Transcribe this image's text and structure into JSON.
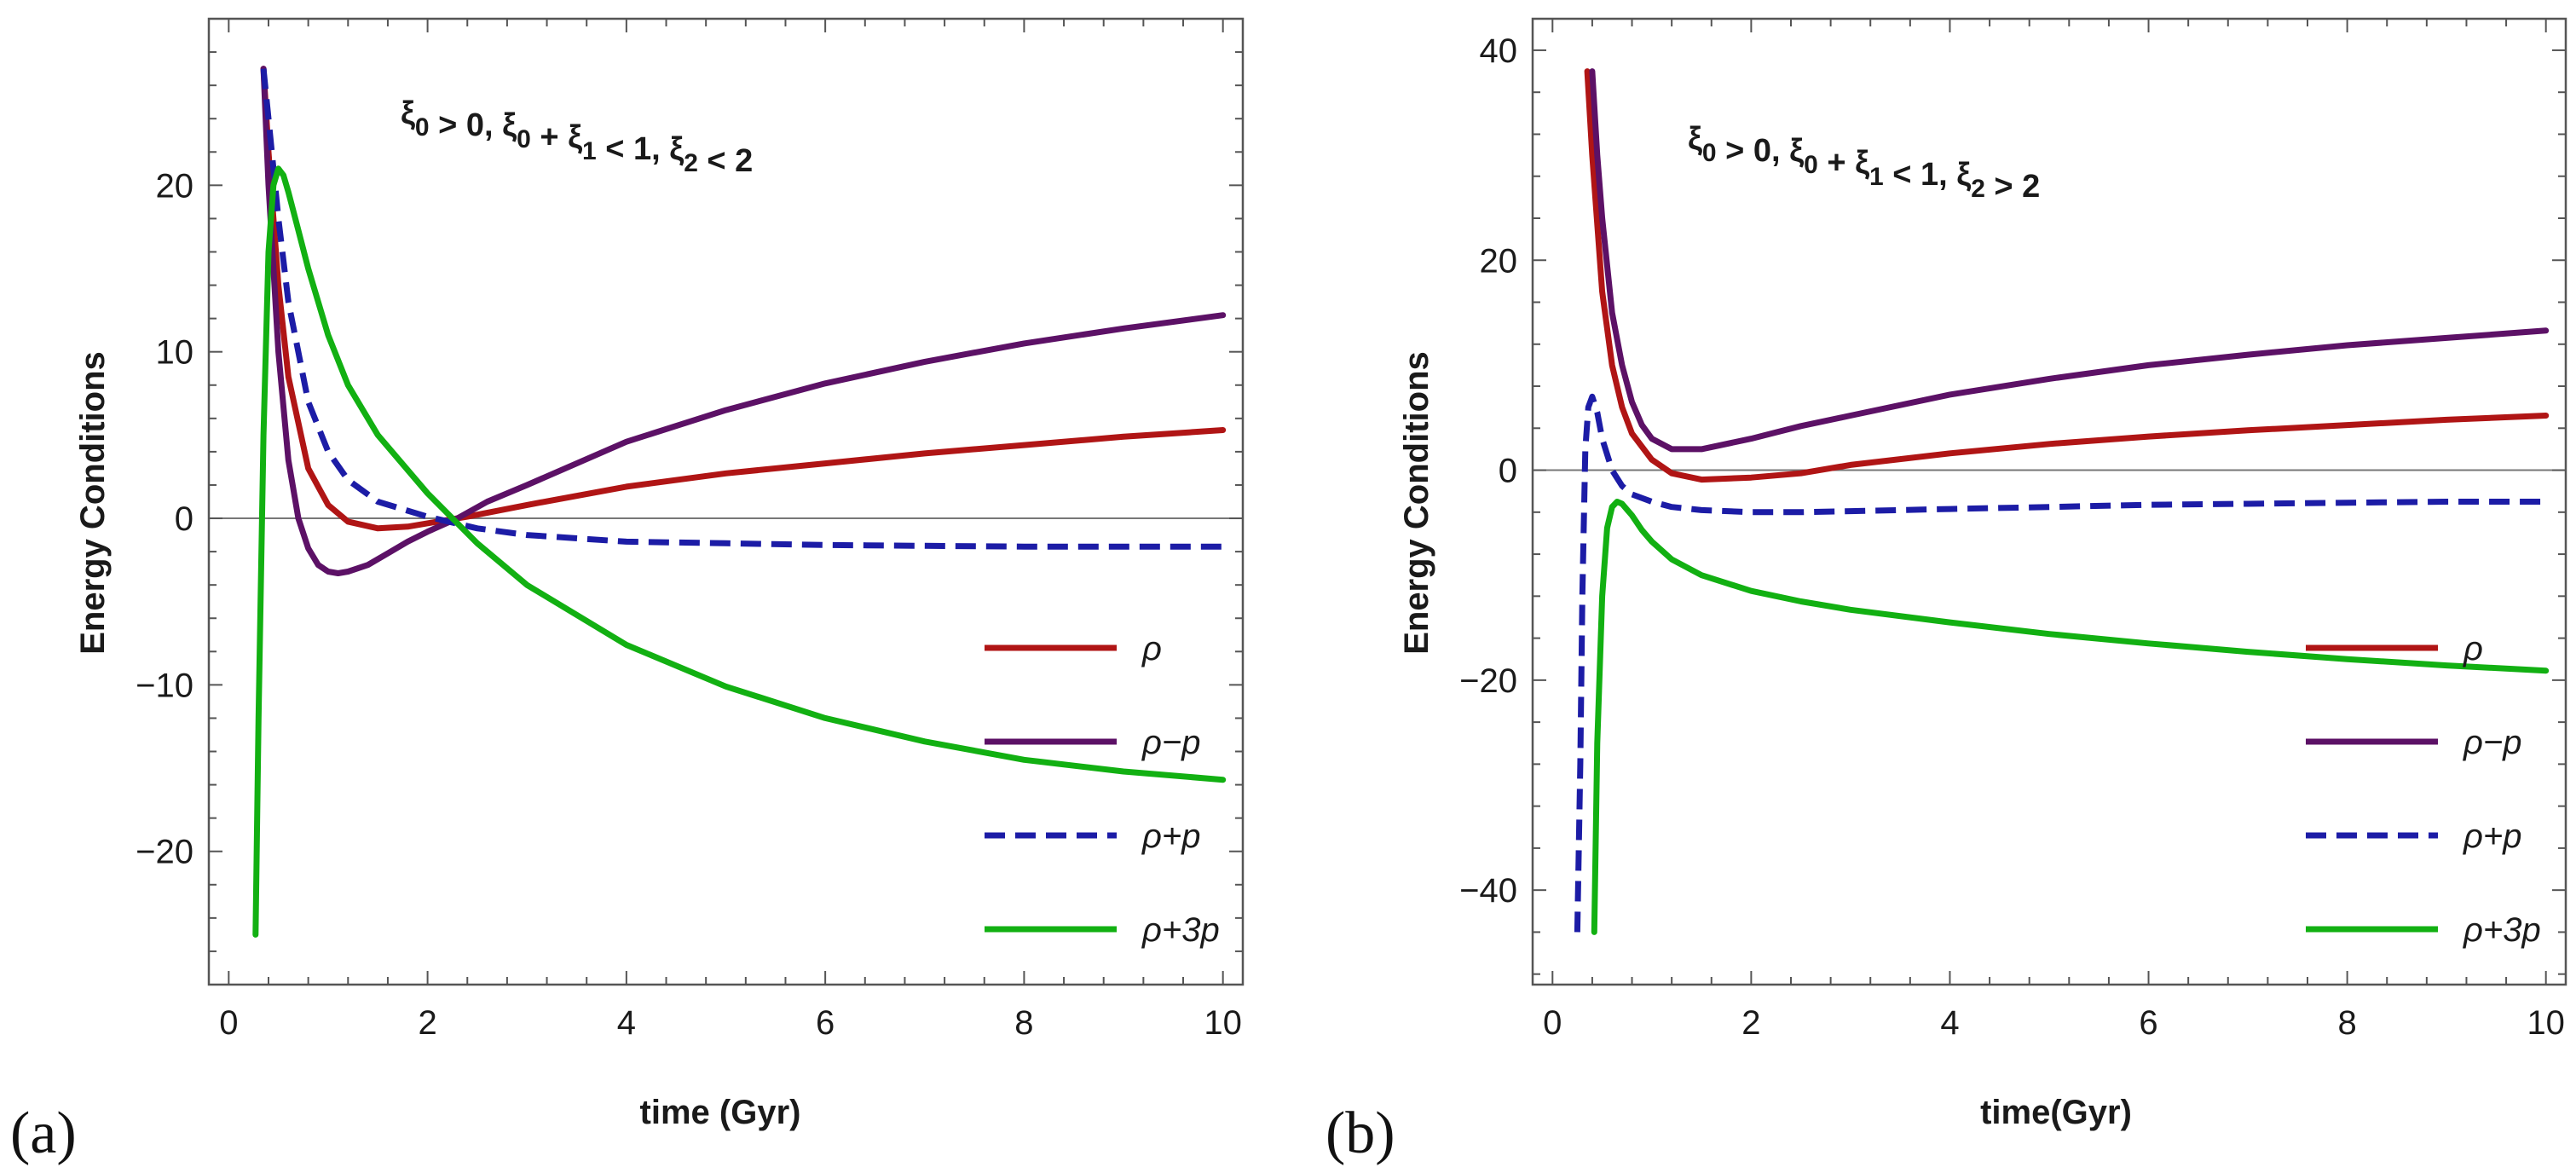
{
  "chart_data": [
    {
      "type": "line",
      "panel_label": "(a)",
      "xlabel": "time (Gyr)",
      "ylabel": "Energy Conditions",
      "annotation": "ξ0 > 0,  ξ0 + ξ1 < 1,  ξ2 < 2",
      "xlim": [
        -0.2,
        10.2
      ],
      "ylim": [
        -28,
        30
      ],
      "xticks": [
        0,
        2,
        4,
        6,
        8,
        10
      ],
      "yticks": [
        -20,
        -10,
        0,
        10,
        20
      ],
      "xtick_labels": [
        "0",
        "2",
        "4",
        "6",
        "8",
        "10"
      ],
      "ytick_labels": [
        "−20",
        "−10",
        "0",
        "10",
        "20"
      ],
      "legend_position": "bottom-right",
      "series": [
        {
          "name": "ρ",
          "color": "#b01515",
          "dash": "solid",
          "x": [
            0.35,
            0.4,
            0.5,
            0.6,
            0.8,
            1.0,
            1.2,
            1.5,
            1.8,
            2.1,
            2.4,
            3.0,
            4.0,
            5.0,
            6.0,
            7.0,
            8.0,
            9.0,
            10.0
          ],
          "y": [
            27,
            22,
            14,
            8.5,
            3.0,
            0.8,
            -0.2,
            -0.6,
            -0.5,
            -0.2,
            0.1,
            0.8,
            1.9,
            2.7,
            3.3,
            3.9,
            4.4,
            4.9,
            5.3
          ]
        },
        {
          "name": "ρ−p",
          "color": "#5c1166",
          "dash": "solid",
          "x": [
            0.35,
            0.4,
            0.5,
            0.6,
            0.7,
            0.8,
            0.9,
            1.0,
            1.1,
            1.2,
            1.4,
            1.6,
            1.8,
            2.0,
            2.3,
            2.6,
            3.0,
            4.0,
            5.0,
            6.0,
            7.0,
            8.0,
            9.0,
            10.0
          ],
          "y": [
            27,
            20,
            10,
            3.5,
            0.0,
            -1.8,
            -2.8,
            -3.2,
            -3.3,
            -3.2,
            -2.8,
            -2.1,
            -1.4,
            -0.8,
            0.0,
            1.0,
            2.0,
            4.6,
            6.5,
            8.1,
            9.4,
            10.5,
            11.4,
            12.2
          ]
        },
        {
          "name": "ρ+p",
          "color": "#1c1ca6",
          "dash": "dashed",
          "x": [
            0.35,
            0.4,
            0.5,
            0.6,
            0.8,
            1.0,
            1.2,
            1.5,
            2.0,
            2.5,
            3.0,
            4.0,
            5.0,
            6.0,
            7.0,
            8.0,
            9.0,
            10.0
          ],
          "y": [
            27,
            24,
            18,
            13,
            7.0,
            4.0,
            2.3,
            1.0,
            0.1,
            -0.6,
            -1.0,
            -1.4,
            -1.5,
            -1.6,
            -1.65,
            -1.7,
            -1.7,
            -1.7
          ]
        },
        {
          "name": "ρ+3p",
          "color": "#12b012",
          "dash": "solid",
          "x": [
            0.27,
            0.3,
            0.35,
            0.4,
            0.45,
            0.5,
            0.55,
            0.6,
            0.7,
            0.8,
            1.0,
            1.2,
            1.5,
            2.0,
            2.5,
            3.0,
            4.0,
            5.0,
            6.0,
            7.0,
            8.0,
            9.0,
            10.0
          ],
          "y": [
            -25,
            -12,
            5,
            16,
            20,
            21,
            20.6,
            19.6,
            17.3,
            15.0,
            11.0,
            8.0,
            5.0,
            1.5,
            -1.5,
            -4.0,
            -7.6,
            -10.1,
            -12.0,
            -13.4,
            -14.5,
            -15.2,
            -15.7
          ]
        }
      ]
    },
    {
      "type": "line",
      "panel_label": "(b)",
      "xlabel": "time(Gyr)",
      "ylabel": "Energy Conditions",
      "annotation": "ξ0 > 0, ξ0 + ξ1 < 1, ξ2 > 2",
      "xlim": [
        -0.2,
        10.2
      ],
      "ylim": [
        -49,
        43
      ],
      "xticks": [
        0,
        2,
        4,
        6,
        8,
        10
      ],
      "yticks": [
        -40,
        -20,
        0,
        20,
        40
      ],
      "xtick_labels": [
        "0",
        "2",
        "4",
        "6",
        "8",
        "10"
      ],
      "ytick_labels": [
        "−40",
        "−20",
        "0",
        "20",
        "40"
      ],
      "legend_position": "bottom-right",
      "series": [
        {
          "name": "ρ",
          "color": "#b01515",
          "dash": "solid",
          "x": [
            0.35,
            0.4,
            0.5,
            0.6,
            0.7,
            0.8,
            1.0,
            1.2,
            1.5,
            2.0,
            2.5,
            3.0,
            4.0,
            5.0,
            6.0,
            7.0,
            8.0,
            9.0,
            10.0
          ],
          "y": [
            38,
            30,
            17,
            10,
            6,
            3.5,
            1.0,
            -0.3,
            -0.9,
            -0.7,
            -0.3,
            0.5,
            1.6,
            2.5,
            3.2,
            3.8,
            4.3,
            4.8,
            5.2
          ]
        },
        {
          "name": "ρ−p",
          "color": "#5c1166",
          "dash": "solid",
          "x": [
            0.4,
            0.45,
            0.5,
            0.6,
            0.7,
            0.8,
            0.9,
            1.0,
            1.2,
            1.5,
            2.0,
            2.5,
            3.0,
            4.0,
            5.0,
            6.0,
            7.0,
            8.0,
            9.0,
            10.0
          ],
          "y": [
            38,
            30,
            24,
            15,
            10,
            6.5,
            4.3,
            3.0,
            2.0,
            2.0,
            3.0,
            4.2,
            5.2,
            7.2,
            8.7,
            10.0,
            11.0,
            11.9,
            12.6,
            13.3
          ]
        },
        {
          "name": "ρ+p",
          "color": "#1c1ca6",
          "dash": "dashed",
          "x": [
            0.25,
            0.28,
            0.3,
            0.33,
            0.36,
            0.4,
            0.45,
            0.5,
            0.6,
            0.7,
            0.8,
            1.0,
            1.2,
            1.5,
            2.0,
            2.5,
            3.0,
            4.0,
            5.0,
            6.0,
            7.0,
            8.0,
            9.0,
            10.0
          ],
          "y": [
            -44,
            -28,
            -12,
            2,
            6,
            7,
            5.5,
            3,
            0,
            -1.5,
            -2.3,
            -3.0,
            -3.5,
            -3.8,
            -4.0,
            -4.0,
            -3.9,
            -3.7,
            -3.5,
            -3.3,
            -3.2,
            -3.1,
            -3.0,
            -3.0
          ]
        },
        {
          "name": "ρ+3p",
          "color": "#12b012",
          "dash": "solid",
          "x": [
            0.42,
            0.45,
            0.5,
            0.55,
            0.6,
            0.65,
            0.7,
            0.8,
            0.9,
            1.0,
            1.2,
            1.5,
            2.0,
            2.5,
            3.0,
            4.0,
            5.0,
            6.0,
            7.0,
            8.0,
            9.0,
            10.0
          ],
          "y": [
            -44,
            -26,
            -12,
            -5.5,
            -3.5,
            -3.0,
            -3.2,
            -4.3,
            -5.7,
            -6.8,
            -8.5,
            -10.0,
            -11.5,
            -12.5,
            -13.3,
            -14.5,
            -15.6,
            -16.5,
            -17.3,
            -18.0,
            -18.6,
            -19.1
          ]
        }
      ]
    }
  ]
}
